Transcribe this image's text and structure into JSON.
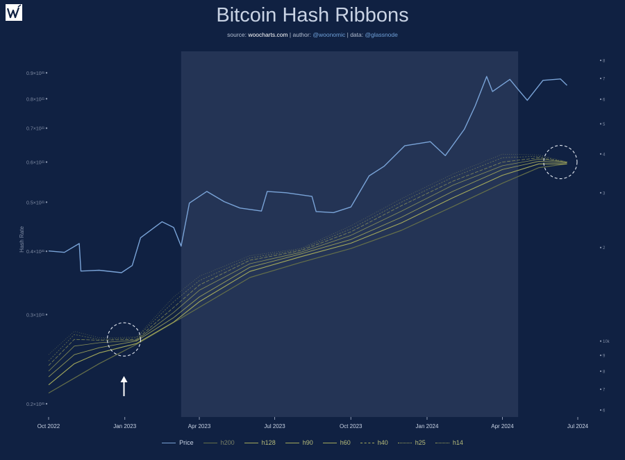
{
  "header": {
    "title": "Bitcoin Hash Ribbons",
    "subtitle": {
      "source_label": "source:",
      "source": "woocharts.com",
      "author_label": "| author:",
      "author": "@woonomic",
      "data_label": "| data:",
      "data": "@glassnode"
    }
  },
  "chart_data": {
    "type": "line",
    "title": "Bitcoin Hash Ribbons",
    "ylabel": "Hash Rate",
    "x_ticks": [
      "Oct 2022",
      "Jan 2023",
      "Apr 2023",
      "Jul 2023",
      "Oct 2023",
      "Jan 2024",
      "Apr 2024",
      "Jul 2024"
    ],
    "x_range": [
      "2022-10-01",
      "2024-07-01"
    ],
    "y_scale": "log",
    "y_ticks": [
      "0.2×10²¹",
      "0.3×10²¹",
      "0.4×10²¹",
      "0.5×10²¹",
      "0.6×10²¹",
      "0.7×10²¹",
      "0.8×10²¹",
      "0.9×10²¹"
    ],
    "y_range": [
      0.2,
      0.9
    ],
    "y2_ticks": [
      "6",
      "7",
      "8",
      "9",
      "10k",
      "2",
      "3",
      "4",
      "5",
      "6",
      "7",
      "8"
    ],
    "y2_range": [
      "6k",
      "80k"
    ],
    "highlight_region": [
      "2023-03-10",
      "2024-04-20"
    ],
    "annotations": [
      {
        "type": "circle",
        "date": "2022-12-31",
        "label": ""
      },
      {
        "type": "arrow",
        "date": "2022-12-31",
        "label": ""
      },
      {
        "type": "circle",
        "date": "2024-06-10",
        "label": ""
      }
    ],
    "legend": [
      "Price",
      "h200",
      "h128",
      "h90",
      "h60",
      "h40",
      "h25",
      "h14"
    ],
    "colors": {
      "price": "#7aa4d8",
      "ribbons": "#a5aa5c",
      "background": "#102142",
      "highlight": "#243455"
    },
    "series": [
      {
        "name": "Price",
        "axis": "right",
        "x": [
          "2022-10-01",
          "2022-10-20",
          "2022-11-07",
          "2022-11-09",
          "2022-12-01",
          "2022-12-28",
          "2023-01-10",
          "2023-01-20",
          "2023-02-15",
          "2023-03-01",
          "2023-03-10",
          "2023-03-20",
          "2023-04-10",
          "2023-05-01",
          "2023-05-20",
          "2023-06-15",
          "2023-06-22",
          "2023-07-15",
          "2023-08-15",
          "2023-08-20",
          "2023-09-10",
          "2023-10-01",
          "2023-10-23",
          "2023-11-10",
          "2023-12-05",
          "2024-01-05",
          "2024-01-23",
          "2024-02-15",
          "2024-02-28",
          "2024-03-13",
          "2024-03-20",
          "2024-04-10",
          "2024-04-20",
          "2024-05-01",
          "2024-05-20",
          "2024-06-10",
          "2024-06-18"
        ],
        "values": [
          19500,
          19300,
          20600,
          16800,
          16900,
          16600,
          17500,
          21500,
          24200,
          23200,
          20200,
          27800,
          30300,
          28100,
          26800,
          26200,
          30300,
          30000,
          29200,
          26100,
          25900,
          27000,
          34000,
          36500,
          42500,
          43800,
          39500,
          48000,
          57000,
          71000,
          63500,
          69500,
          64500,
          59500,
          69000,
          69700,
          66500
        ]
      },
      {
        "name": "h200",
        "axis": "left",
        "x": [
          "2022-10-01",
          "2022-12-01",
          "2023-01-15",
          "2023-04-01",
          "2023-06-01",
          "2023-08-01",
          "2023-10-01",
          "2023-12-01",
          "2024-02-01",
          "2024-04-01",
          "2024-05-15",
          "2024-06-18"
        ],
        "values": [
          0.21,
          0.24,
          0.262,
          0.31,
          0.355,
          0.38,
          0.405,
          0.44,
          0.49,
          0.545,
          0.585,
          0.595
        ]
      },
      {
        "name": "h128",
        "axis": "left",
        "x": [
          "2022-10-01",
          "2022-11-01",
          "2022-12-01",
          "2023-01-15",
          "2023-03-01",
          "2023-04-01",
          "2023-06-01",
          "2023-08-01",
          "2023-10-01",
          "2023-12-01",
          "2024-02-01",
          "2024-04-01",
          "2024-05-15",
          "2024-06-18"
        ],
        "values": [
          0.218,
          0.24,
          0.252,
          0.263,
          0.29,
          0.318,
          0.365,
          0.39,
          0.415,
          0.455,
          0.51,
          0.565,
          0.595,
          0.595
        ]
      },
      {
        "name": "h90",
        "axis": "left",
        "x": [
          "2022-10-01",
          "2022-11-01",
          "2022-12-01",
          "2023-01-15",
          "2023-03-01",
          "2023-04-01",
          "2023-06-01",
          "2023-08-01",
          "2023-10-01",
          "2023-12-01",
          "2024-02-01",
          "2024-04-01",
          "2024-05-15",
          "2024-06-18"
        ],
        "values": [
          0.226,
          0.25,
          0.258,
          0.266,
          0.296,
          0.325,
          0.372,
          0.395,
          0.422,
          0.467,
          0.525,
          0.58,
          0.602,
          0.598
        ]
      },
      {
        "name": "h60",
        "axis": "left",
        "x": [
          "2022-10-01",
          "2022-11-01",
          "2022-12-01",
          "2023-01-15",
          "2023-03-01",
          "2023-04-01",
          "2023-06-01",
          "2023-08-01",
          "2023-10-01",
          "2023-12-01",
          "2024-02-01",
          "2024-04-01",
          "2024-05-15",
          "2024-06-18"
        ],
        "values": [
          0.232,
          0.26,
          0.264,
          0.267,
          0.303,
          0.335,
          0.378,
          0.398,
          0.43,
          0.48,
          0.54,
          0.59,
          0.608,
          0.6
        ]
      },
      {
        "name": "h40",
        "axis": "left",
        "x": [
          "2022-10-01",
          "2022-11-01",
          "2022-12-01",
          "2023-01-15",
          "2023-03-01",
          "2023-04-01",
          "2023-06-01",
          "2023-08-01",
          "2023-10-01",
          "2023-12-01",
          "2024-02-01",
          "2024-04-01",
          "2024-05-15",
          "2024-06-18"
        ],
        "values": [
          0.238,
          0.268,
          0.267,
          0.268,
          0.31,
          0.343,
          0.384,
          0.401,
          0.437,
          0.492,
          0.55,
          0.6,
          0.612,
          0.6
        ]
      },
      {
        "name": "h25",
        "axis": "left",
        "x": [
          "2022-10-01",
          "2022-11-01",
          "2022-12-01",
          "2023-01-15",
          "2023-03-01",
          "2023-04-01",
          "2023-06-01",
          "2023-08-01",
          "2023-10-01",
          "2023-12-01",
          "2024-02-01",
          "2024-04-01",
          "2024-05-15",
          "2024-06-18"
        ],
        "values": [
          0.243,
          0.274,
          0.268,
          0.27,
          0.318,
          0.35,
          0.388,
          0.403,
          0.443,
          0.5,
          0.56,
          0.612,
          0.616,
          0.6
        ]
      },
      {
        "name": "h14",
        "axis": "left",
        "x": [
          "2022-10-01",
          "2022-11-01",
          "2022-12-01",
          "2023-01-15",
          "2023-03-01",
          "2023-04-01",
          "2023-06-01",
          "2023-08-01",
          "2023-10-01",
          "2023-12-01",
          "2024-02-01",
          "2024-04-01",
          "2024-05-15",
          "2024-06-18"
        ],
        "values": [
          0.25,
          0.278,
          0.27,
          0.271,
          0.325,
          0.357,
          0.392,
          0.405,
          0.449,
          0.508,
          0.568,
          0.622,
          0.62,
          0.601
        ]
      }
    ]
  }
}
